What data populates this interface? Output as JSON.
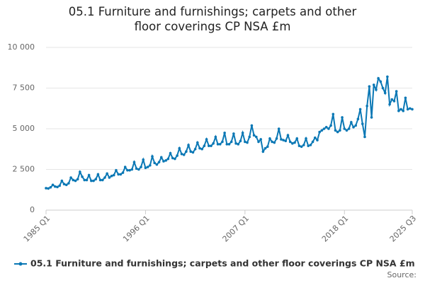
{
  "chart_data": {
    "type": "line",
    "title": "05.1 Furniture and furnishings; carpets and other floor coverings CP NSA £m",
    "categories": [
      "1985 Q1",
      null,
      null,
      null,
      null,
      null,
      null,
      null,
      null,
      null,
      null,
      null,
      null,
      null,
      null,
      null,
      null,
      null,
      null,
      null,
      null,
      null,
      null,
      null,
      null,
      null,
      null,
      null,
      null,
      null,
      null,
      null,
      null,
      null,
      null,
      null,
      null,
      null,
      null,
      null,
      null,
      null,
      null,
      null,
      "1996 Q1",
      null,
      null,
      null,
      null,
      null,
      null,
      null,
      null,
      null,
      null,
      null,
      null,
      null,
      null,
      null,
      null,
      null,
      null,
      null,
      null,
      null,
      null,
      null,
      null,
      null,
      null,
      null,
      null,
      null,
      null,
      null,
      null,
      null,
      null,
      null,
      null,
      null,
      null,
      null,
      null,
      null,
      null,
      null,
      "2007 Q1",
      null,
      null,
      null,
      null,
      null,
      null,
      null,
      null,
      null,
      null,
      null,
      null,
      null,
      null,
      null,
      null,
      null,
      null,
      null,
      null,
      null,
      null,
      null,
      null,
      null,
      null,
      null,
      null,
      null,
      null,
      null,
      null,
      null,
      null,
      null,
      null,
      null,
      null,
      null,
      null,
      null,
      null,
      null,
      "2018 Q1",
      null,
      null,
      null,
      null,
      null,
      null,
      null,
      null,
      null,
      null,
      null,
      null,
      null,
      null,
      null,
      null,
      null,
      null,
      null,
      null,
      null,
      null,
      null,
      null,
      null,
      null,
      null,
      null,
      null,
      "2025 Q3"
    ],
    "series": [
      {
        "name": "05.1 Furniture and furnishings; carpets and other floor coverings CP NSA £m",
        "color": "#0b78b5",
        "values": [
          1350,
          1330,
          1400,
          1550,
          1450,
          1420,
          1500,
          1800,
          1600,
          1550,
          1650,
          2000,
          1850,
          1800,
          1900,
          2350,
          2050,
          1850,
          1850,
          2150,
          1800,
          1800,
          1900,
          2200,
          1850,
          1850,
          2000,
          2250,
          2000,
          2100,
          2150,
          2450,
          2200,
          2200,
          2300,
          2650,
          2450,
          2450,
          2500,
          2950,
          2550,
          2500,
          2650,
          3100,
          2600,
          2650,
          2750,
          3300,
          2900,
          2800,
          2950,
          3250,
          3000,
          3050,
          3150,
          3500,
          3200,
          3150,
          3350,
          3800,
          3450,
          3400,
          3600,
          4000,
          3600,
          3550,
          3750,
          4150,
          3800,
          3750,
          3950,
          4350,
          3950,
          3950,
          4100,
          4500,
          4050,
          4050,
          4200,
          4750,
          4050,
          4050,
          4200,
          4700,
          4100,
          4050,
          4250,
          4750,
          4200,
          4150,
          4500,
          5200,
          4600,
          4500,
          4200,
          4350,
          3600,
          3800,
          3900,
          4400,
          4200,
          4150,
          4400,
          5000,
          4350,
          4300,
          4250,
          4600,
          4200,
          4100,
          4150,
          4400,
          3950,
          3900,
          4000,
          4400,
          3950,
          4000,
          4200,
          4450,
          4300,
          4800,
          4900,
          5000,
          5100,
          5000,
          5200,
          5900,
          4900,
          4800,
          4900,
          5700,
          5000,
          4900,
          5000,
          5400,
          5100,
          5200,
          5600,
          6200,
          5300,
          4500,
          6400,
          7600,
          5700,
          7700,
          7400,
          8100,
          7900,
          7500,
          7200,
          8200,
          6500,
          6800,
          6700,
          7300,
          6100,
          6200,
          6100,
          6900,
          6200,
          6250,
          6200
        ]
      }
    ],
    "ylim": [
      0,
      10000
    ],
    "yticks": [
      0,
      {
        "value": 2500,
        "label": "2 500"
      },
      {
        "value": 5000,
        "label": "5 000"
      },
      {
        "value": 7500,
        "label": "7 500"
      },
      {
        "value": 10000,
        "label": "10 000"
      }
    ],
    "grid": true,
    "source": "Source:"
  }
}
